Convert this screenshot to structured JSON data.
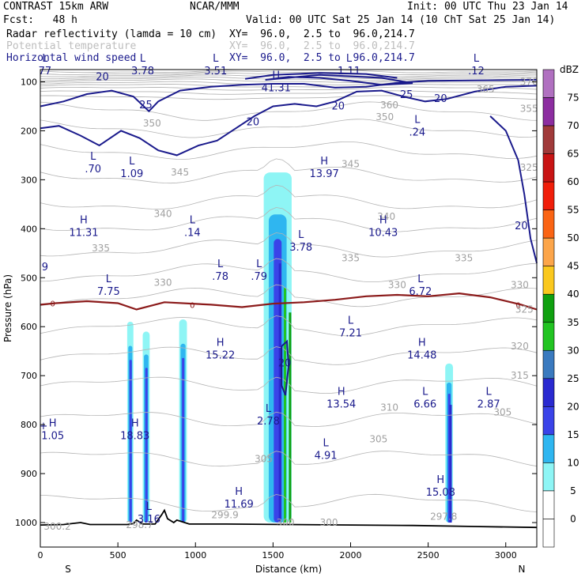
{
  "header": {
    "model": "CONTRAST 15km ARW",
    "center": "NCAR/MMM",
    "init": "Init: 00 UTC Thu 23 Jan 14",
    "fcst": "Fcst:   48 h",
    "valid": "Valid: 00 UTC Sat 25 Jan 14 (10 ChT Sat 25 Jan 14)",
    "fields": [
      {
        "name": "Radar reflectivity (lamda = 10 cm)",
        "xy": "XY=  96.0,  2.5 to  96.0,214.7"
      },
      {
        "name": "Potential temperature",
        "xy": "XY=  96.0,  2.5 to  96.0,214.7"
      },
      {
        "name": "Horizontal wind speed",
        "xy": "XY=  96.0,  2.5 to  96.0,214.7"
      }
    ]
  },
  "colors": {
    "reflectivity_line": "#000000",
    "theta_line": "#b4b4b4",
    "wind_line": "#1a1a8c",
    "freezing_line": "#8b1a1a"
  },
  "chart_data": {
    "type": "contour-cross-section",
    "xlabel": "Distance (km)",
    "ylabel": "Pressure (hPa)",
    "xlim": [
      0,
      3200
    ],
    "ylim": [
      1050,
      75
    ],
    "x_ticks": [
      0,
      500,
      1000,
      1500,
      2000,
      2500,
      3000
    ],
    "y_ticks": [
      100,
      200,
      300,
      400,
      500,
      600,
      700,
      800,
      900,
      1000
    ],
    "end_labels": {
      "left": "S",
      "right": "N"
    },
    "colorbar": {
      "unit": "dBZ",
      "levels": [
        0,
        5,
        10,
        15,
        20,
        25,
        30,
        35,
        40,
        45,
        50,
        55,
        60,
        65,
        70,
        75
      ],
      "colors": [
        "#ffffff",
        "#8ef5f5",
        "#2fb6f0",
        "#3a43e8",
        "#2a2ad0",
        "#3a7abf",
        "#22c422",
        "#10a010",
        "#fac81e",
        "#fca54a",
        "#fa6414",
        "#f01e0a",
        "#c81414",
        "#a03a3a",
        "#8c2da0",
        "#b070c0"
      ]
    },
    "reflectivity_cells": [
      {
        "x": [
          560,
          600
        ],
        "p": [
          590,
          1000
        ],
        "max_dbz": 15
      },
      {
        "x": [
          660,
          705
        ],
        "p": [
          610,
          1000
        ],
        "max_dbz": 15
      },
      {
        "x": [
          895,
          945
        ],
        "p": [
          585,
          1000
        ],
        "max_dbz": 15
      },
      {
        "x": [
          1440,
          1620
        ],
        "p": [
          285,
          1000
        ],
        "max_dbz": 35
      },
      {
        "x": [
          2610,
          2660
        ],
        "p": [
          675,
          1000
        ],
        "max_dbz": 20
      }
    ],
    "freezing_level": {
      "label": "0",
      "x": [
        0,
        100,
        300,
        500,
        620,
        800,
        1100,
        1300,
        1500,
        1700,
        1900,
        2100,
        2300,
        2500,
        2700,
        2900,
        3100,
        3200
      ],
      "p": [
        555,
        552,
        548,
        552,
        565,
        550,
        555,
        560,
        553,
        550,
        545,
        538,
        535,
        538,
        532,
        540,
        555,
        565
      ]
    },
    "theta_labels": [
      {
        "text": "370",
        "x": 3150,
        "p": 100
      },
      {
        "text": "365",
        "x": 2870,
        "p": 115
      },
      {
        "text": "360",
        "x": 2250,
        "p": 148
      },
      {
        "text": "355",
        "x": 3150,
        "p": 155
      },
      {
        "text": "350",
        "x": 2220,
        "p": 172
      },
      {
        "text": "350",
        "x": 720,
        "p": 185
      },
      {
        "text": "345",
        "x": 2000,
        "p": 268
      },
      {
        "text": "345",
        "x": 900,
        "p": 285
      },
      {
        "text": "325",
        "x": 3150,
        "p": 275
      },
      {
        "text": "340",
        "x": 790,
        "p": 370
      },
      {
        "text": "340",
        "x": 2230,
        "p": 375
      },
      {
        "text": "335",
        "x": 390,
        "p": 440
      },
      {
        "text": "335",
        "x": 2000,
        "p": 460
      },
      {
        "text": "335",
        "x": 2730,
        "p": 460
      },
      {
        "text": "330",
        "x": 790,
        "p": 510
      },
      {
        "text": "330",
        "x": 2300,
        "p": 515
      },
      {
        "text": "330",
        "x": 3090,
        "p": 515
      },
      {
        "text": "325",
        "x": 3120,
        "p": 565
      },
      {
        "text": "320",
        "x": 3090,
        "p": 640
      },
      {
        "text": "315",
        "x": 3090,
        "p": 700
      },
      {
        "text": "310",
        "x": 2250,
        "p": 765
      },
      {
        "text": "305",
        "x": 2980,
        "p": 775
      },
      {
        "text": "305",
        "x": 2180,
        "p": 830
      },
      {
        "text": "305",
        "x": 1440,
        "p": 870
      },
      {
        "text": "300",
        "x": 1580,
        "p": 1000
      },
      {
        "text": "300",
        "x": 1860,
        "p": 1000
      },
      {
        "text": "299.9",
        "x": 1190,
        "p": 985
      },
      {
        "text": "298.7",
        "x": 640,
        "p": 1005
      },
      {
        "text": "300.2",
        "x": 110,
        "p": 1008
      },
      {
        "text": "297.8",
        "x": 2600,
        "p": 988
      }
    ],
    "wind_labels": [
      {
        "text": "20",
        "x": 400,
        "p": 90
      },
      {
        "text": "25",
        "x": 680,
        "p": 148
      },
      {
        "text": "20",
        "x": 1370,
        "p": 182
      },
      {
        "text": "20",
        "x": 1920,
        "p": 150
      },
      {
        "text": "25",
        "x": 2360,
        "p": 127
      },
      {
        "text": "20",
        "x": 2580,
        "p": 135
      },
      {
        "text": "20",
        "x": 3100,
        "p": 395
      },
      {
        "text": "20",
        "x": 1575,
        "p": 675
      }
    ],
    "hl_labels": [
      {
        "type": "L",
        "value": "77",
        "x": 30,
        "p": 75
      },
      {
        "type": "L",
        "value": "3.78",
        "x": 660,
        "p": 75
      },
      {
        "type": "L",
        "value": "3.51",
        "x": 1130,
        "p": 75
      },
      {
        "type": "H",
        "value": "41.31",
        "x": 1520,
        "p": 110
      },
      {
        "type": "L",
        "value": "1.11",
        "x": 1990,
        "p": 75
      },
      {
        "type": "L",
        "value": ".12",
        "x": 2810,
        "p": 75
      },
      {
        "type": "L",
        "value": ".24",
        "x": 2430,
        "p": 200
      },
      {
        "type": "L",
        "value": ".70",
        "x": 340,
        "p": 275
      },
      {
        "type": "L",
        "value": "1.09",
        "x": 590,
        "p": 285
      },
      {
        "type": "H",
        "value": "13.97",
        "x": 1830,
        "p": 285
      },
      {
        "type": "H",
        "value": "11.31",
        "x": 280,
        "p": 405
      },
      {
        "type": "L",
        "value": ".14",
        "x": 980,
        "p": 405
      },
      {
        "type": "H",
        "value": "10.43",
        "x": 2210,
        "p": 405
      },
      {
        "type": "L",
        "value": "3.78",
        "x": 1680,
        "p": 435
      },
      {
        "type": "L",
        "value": ".78",
        "x": 1160,
        "p": 495
      },
      {
        "type": "L",
        "value": ".79",
        "x": 1410,
        "p": 495
      },
      {
        "type": "L",
        "value": "7.75",
        "x": 440,
        "p": 525
      },
      {
        "type": "L",
        "value": "6.72",
        "x": 2450,
        "p": 525
      },
      {
        "type": "L",
        "value": "7.21",
        "x": 2000,
        "p": 610
      },
      {
        "type": "H",
        "value": "15.22",
        "x": 1160,
        "p": 655
      },
      {
        "type": "H",
        "value": "14.48",
        "x": 2460,
        "p": 655
      },
      {
        "type": "H",
        "value": "13.54",
        "x": 1940,
        "p": 755
      },
      {
        "type": "L",
        "value": "6.66",
        "x": 2480,
        "p": 755
      },
      {
        "type": "L",
        "value": "2.87",
        "x": 2890,
        "p": 755
      },
      {
        "type": "L",
        "value": "2.78",
        "x": 1470,
        "p": 790
      },
      {
        "type": "H",
        "value": "1.05",
        "x": 80,
        "p": 820
      },
      {
        "type": "H",
        "value": "18.83",
        "x": 610,
        "p": 820
      },
      {
        "type": "L",
        "value": "4.91",
        "x": 1840,
        "p": 860
      },
      {
        "type": "H",
        "value": "15.08",
        "x": 2580,
        "p": 935
      },
      {
        "type": "H",
        "value": "11.69",
        "x": 1280,
        "p": 960
      },
      {
        "type": "L",
        "value": "3.16",
        "x": 700,
        "p": 990
      },
      {
        "type": "",
        "value": "9",
        "x": 30,
        "p": 475
      },
      {
        "type": "",
        "value": "+",
        "x": 20,
        "p": 800
      }
    ]
  }
}
